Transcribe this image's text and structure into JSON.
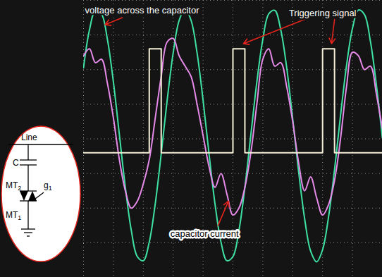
{
  "chart_data": {
    "type": "line",
    "x": [
      0,
      0.2,
      0.4,
      0.6,
      0.8,
      1,
      1.2,
      1.4,
      1.6,
      1.8,
      2,
      2.2,
      2.4,
      2.6,
      2.8,
      3,
      3.2,
      3.4,
      3.6,
      3.8,
      4,
      4.2,
      4.4,
      4.6,
      4.8,
      5,
      5.2,
      5.4,
      5.6,
      5.8,
      6,
      6.2,
      6.4,
      6.6,
      6.8,
      7,
      7.2,
      7.4,
      7.6,
      7.8,
      8,
      8.2,
      8.4,
      8.6,
      8.8,
      9,
      9.2,
      9.4,
      9.6,
      9.8,
      10
    ],
    "xlim": [
      0,
      10
    ],
    "xticks": [
      0,
      1,
      2,
      3,
      4,
      5,
      6,
      7,
      8,
      9,
      10
    ],
    "ylim": [
      -4,
      4
    ],
    "yticks": [
      -4,
      -3,
      -2,
      -1,
      0,
      1,
      2,
      3,
      4
    ],
    "grid": true,
    "tick_labels": false,
    "series": [
      {
        "name": "voltage across the capacitor",
        "color": "#3ee0a4",
        "values": [
          2.05,
          3.15,
          3.71,
          3.61,
          2.87,
          1.64,
          0.12,
          -1.4,
          -2.65,
          -3.4,
          -3.52,
          -2.98,
          -1.88,
          -0.43,
          1.12,
          2.48,
          3.42,
          3.75,
          3.42,
          2.48,
          1.12,
          -0.43,
          -1.88,
          -2.98,
          -3.52,
          -3.4,
          -2.65,
          -1.4,
          0.12,
          1.64,
          2.87,
          3.61,
          3.71,
          3.15,
          2.05,
          0.58,
          -0.96,
          -2.31,
          -3.24,
          -3.55,
          -3.2,
          -2.25,
          -0.89,
          0.67,
          2.11,
          3.19,
          3.72,
          3.59,
          2.82,
          1.56,
          0.03
        ]
      },
      {
        "name": "capacitor current",
        "color": "#e58ae8",
        "values": [
          2.4,
          2.6,
          2.2,
          2.3,
          1.6,
          0.6,
          -0.6,
          -1.5,
          -2.0,
          -1.8,
          -1.3,
          -0.6,
          0.6,
          1.8,
          2.8,
          2.9,
          2.4,
          2.1,
          1.8,
          1.0,
          0.1,
          -0.8,
          -1.4,
          -1.0,
          -1.6,
          -2.2,
          -2.0,
          -1.4,
          -0.4,
          1.0,
          2.3,
          2.6,
          2.1,
          2.2,
          1.5,
          0.5,
          -0.7,
          -1.5,
          -1.1,
          -1.7,
          -2.2,
          -1.9,
          -1.2,
          0.0,
          1.5,
          2.5,
          2.4,
          2.0,
          2.1,
          1.3,
          0.3
        ]
      },
      {
        "name": "Triggering signal",
        "color": "#f4efd6",
        "type": "step",
        "values": [
          -0.4,
          -0.4,
          -0.4,
          -0.4,
          -0.4,
          -0.4,
          -0.4,
          -0.4,
          -0.4,
          -0.4,
          -0.4,
          2.6,
          2.6,
          -0.4,
          -0.4,
          -0.4,
          -0.4,
          -0.4,
          -0.4,
          -0.4,
          -0.4,
          -0.4,
          -0.4,
          -0.4,
          -0.4,
          2.6,
          2.6,
          -0.4,
          -0.4,
          -0.4,
          -0.4,
          -0.4,
          -0.4,
          -0.4,
          -0.4,
          -0.4,
          -0.4,
          -0.4,
          -0.4,
          -0.4,
          2.6,
          2.6,
          -0.4,
          -0.4,
          -0.4,
          -0.4,
          -0.4,
          -0.4,
          -0.4,
          -0.4,
          -0.4
        ]
      }
    ],
    "circuit_labels": [
      "Line",
      "C",
      "MT2",
      "g1",
      "MT1"
    ]
  }
}
